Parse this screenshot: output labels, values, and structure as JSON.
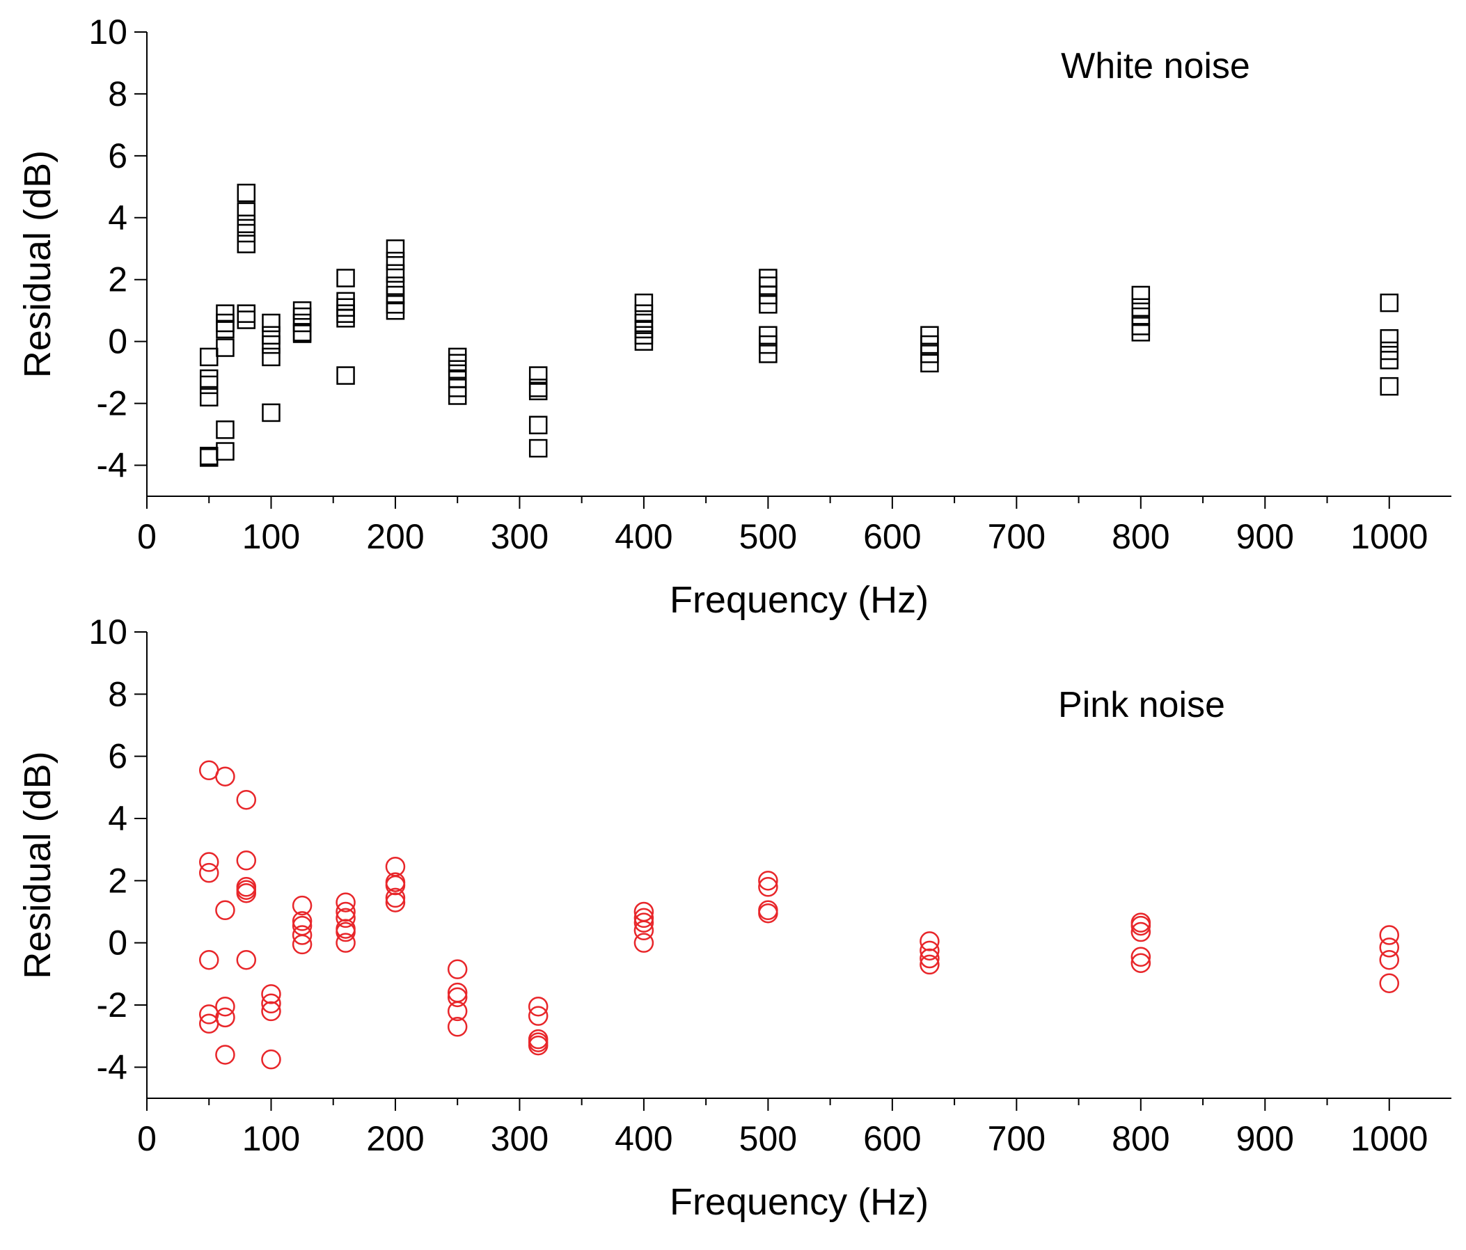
{
  "chart_data": [
    {
      "type": "scatter",
      "title": "White noise",
      "xlabel": "Frequency (Hz)",
      "ylabel": "Residual (dB)",
      "xlim": [
        0,
        1050
      ],
      "ylim": [
        -5,
        10
      ],
      "xticks": [
        0,
        100,
        200,
        300,
        400,
        500,
        600,
        700,
        800,
        900,
        1000
      ],
      "yticks": [
        -4,
        -2,
        0,
        2,
        4,
        6,
        8,
        10
      ],
      "x_tick_labels": [
        "0",
        "100",
        "200",
        "300",
        "400",
        "500",
        "600",
        "700",
        "800",
        "900",
        "1000"
      ],
      "y_tick_labels": [
        "-4",
        "-2",
        "0",
        "2",
        "4",
        "6",
        "8",
        "10"
      ],
      "marker": "square",
      "color": "#000000",
      "series": [
        {
          "x": 50,
          "values": [
            -0.5,
            -1.2,
            -1.4,
            -1.8,
            -3.7,
            -3.75
          ]
        },
        {
          "x": 63,
          "values": [
            0.9,
            0.6,
            0.4,
            -0.2,
            -2.85,
            -3.55
          ]
        },
        {
          "x": 80,
          "values": [
            4.8,
            4.2,
            3.8,
            3.5,
            3.15,
            0.9,
            0.7
          ]
        },
        {
          "x": 100,
          "values": [
            0.6,
            0.2,
            -0.1,
            -0.5,
            -2.3
          ]
        },
        {
          "x": 125,
          "values": [
            1.0,
            0.8,
            0.6,
            0.3,
            0.25
          ]
        },
        {
          "x": 160,
          "values": [
            2.05,
            1.3,
            1.1,
            0.9,
            0.75,
            -1.1
          ]
        },
        {
          "x": 200,
          "values": [
            3.0,
            2.6,
            2.2,
            1.8,
            1.5,
            1.2,
            1.0
          ]
        },
        {
          "x": 250,
          "values": [
            -0.5,
            -0.7,
            -0.9,
            -1.2,
            -1.5,
            -1.75
          ]
        },
        {
          "x": 315,
          "values": [
            -1.1,
            -1.5,
            -1.6,
            -2.7,
            -3.45
          ]
        },
        {
          "x": 400,
          "values": [
            1.25,
            0.9,
            0.6,
            0.4,
            0.2,
            0.0
          ]
        },
        {
          "x": 500,
          "values": [
            2.05,
            1.8,
            1.5,
            1.2,
            0.2,
            -0.1,
            -0.4
          ]
        },
        {
          "x": 630,
          "values": [
            0.2,
            -0.1,
            -0.4,
            -0.7
          ]
        },
        {
          "x": 800,
          "values": [
            1.5,
            1.1,
            0.8,
            0.5,
            0.3
          ]
        },
        {
          "x": 1000,
          "values": [
            1.25,
            0.1,
            -0.3,
            -0.6,
            -1.45
          ]
        }
      ]
    },
    {
      "type": "scatter",
      "title": "Pink noise",
      "xlabel": "Frequency (Hz)",
      "ylabel": "Residual (dB)",
      "xlim": [
        0,
        1050
      ],
      "ylim": [
        -5,
        10
      ],
      "xticks": [
        0,
        100,
        200,
        300,
        400,
        500,
        600,
        700,
        800,
        900,
        1000
      ],
      "yticks": [
        -4,
        -2,
        0,
        2,
        4,
        6,
        8,
        10
      ],
      "x_tick_labels": [
        "0",
        "100",
        "200",
        "300",
        "400",
        "500",
        "600",
        "700",
        "800",
        "900",
        "1000"
      ],
      "y_tick_labels": [
        "-4",
        "-2",
        "0",
        "2",
        "4",
        "6",
        "8",
        "10"
      ],
      "marker": "circle",
      "color": "#e8262a",
      "series": [
        {
          "x": 50,
          "values": [
            5.55,
            2.6,
            2.25,
            -0.55,
            -2.3,
            -2.6
          ]
        },
        {
          "x": 63,
          "values": [
            5.35,
            1.05,
            -2.05,
            -2.4,
            -3.6
          ]
        },
        {
          "x": 80,
          "values": [
            4.6,
            2.65,
            1.8,
            1.7,
            1.6,
            -0.55
          ]
        },
        {
          "x": 100,
          "values": [
            -1.65,
            -1.95,
            -2.2,
            -3.75
          ]
        },
        {
          "x": 125,
          "values": [
            1.2,
            0.7,
            0.55,
            0.25,
            -0.05
          ]
        },
        {
          "x": 160,
          "values": [
            1.3,
            1.0,
            0.8,
            0.45,
            0.35,
            0.0
          ]
        },
        {
          "x": 200,
          "values": [
            2.45,
            1.95,
            1.85,
            1.45,
            1.3
          ]
        },
        {
          "x": 250,
          "values": [
            -0.85,
            -1.6,
            -1.75,
            -2.2,
            -2.7
          ]
        },
        {
          "x": 315,
          "values": [
            -2.05,
            -2.35,
            -3.1,
            -3.2,
            -3.3
          ]
        },
        {
          "x": 400,
          "values": [
            1.0,
            0.8,
            0.65,
            0.4,
            0.0
          ]
        },
        {
          "x": 500,
          "values": [
            2.0,
            1.8,
            1.05,
            0.95
          ]
        },
        {
          "x": 630,
          "values": [
            0.05,
            -0.25,
            -0.5,
            -0.7
          ]
        },
        {
          "x": 800,
          "values": [
            0.65,
            0.55,
            0.35,
            -0.45,
            -0.65
          ]
        },
        {
          "x": 1000,
          "values": [
            0.25,
            -0.15,
            -0.55,
            -1.3
          ]
        }
      ]
    }
  ]
}
